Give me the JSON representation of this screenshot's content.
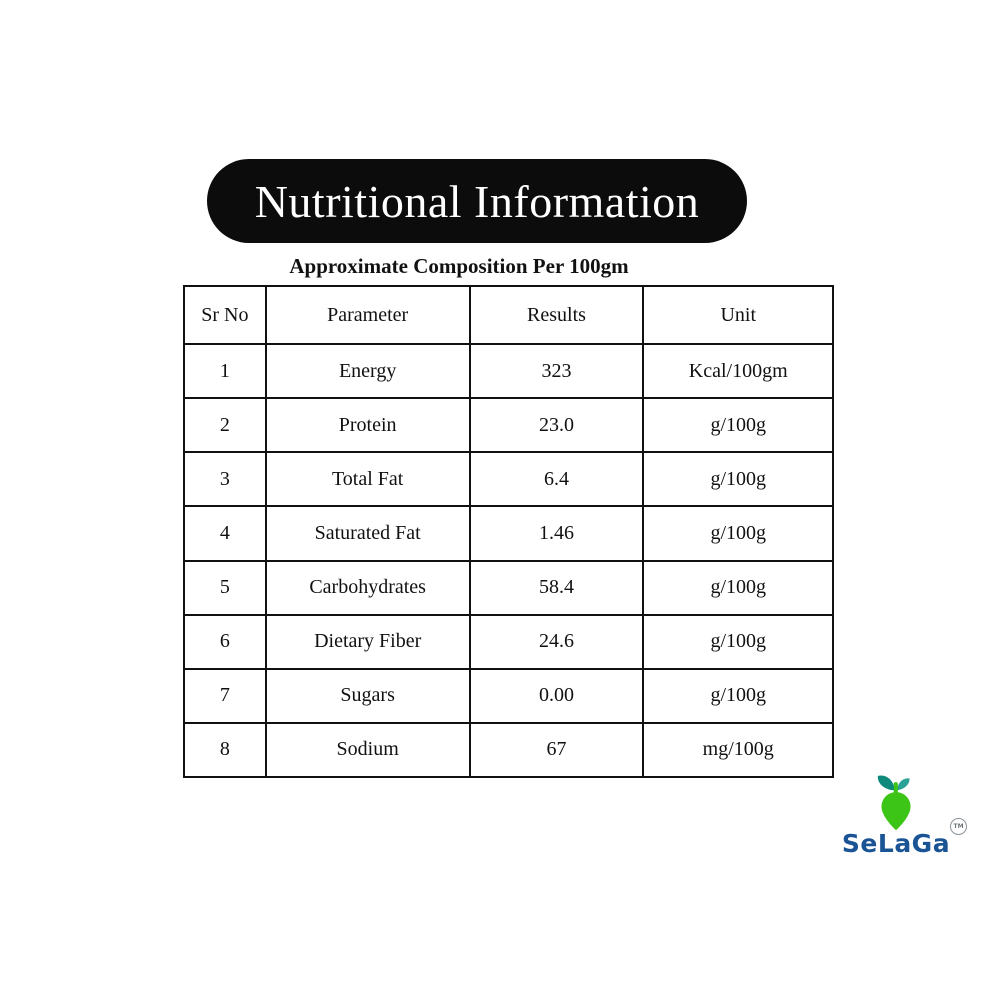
{
  "title": "Nutritional Information",
  "subtitle": "Approximate Composition Per 100gm",
  "table": {
    "headers": [
      "Sr No",
      "Parameter",
      "Results",
      "Unit"
    ],
    "rows": [
      [
        "1",
        "Energy",
        "323",
        "Kcal/100gm"
      ],
      [
        "2",
        "Protein",
        "23.0",
        "g/100g"
      ],
      [
        "3",
        "Total Fat",
        "6.4",
        "g/100g"
      ],
      [
        "4",
        "Saturated Fat",
        "1.46",
        "g/100g"
      ],
      [
        "5",
        "Carbohydrates",
        "58.4",
        "g/100g"
      ],
      [
        "6",
        "Dietary Fiber",
        "24.6",
        "g/100g"
      ],
      [
        "7",
        "Sugars",
        "0.00",
        "g/100g"
      ],
      [
        "8",
        "Sodium",
        "67",
        "mg/100g"
      ]
    ]
  },
  "logo": {
    "brand": "SeLaGa",
    "trademark": "TM",
    "icon": "seed-sprout-icon",
    "colors": {
      "seed_green": "#3cc417",
      "leaf_teal": "#0e8a7c",
      "leaf_teal_light": "#2aa396",
      "brand_text": "#1a5494"
    }
  },
  "colors": {
    "pill_background": "#0c0c0c",
    "pill_text": "#ffffff",
    "table_border": "#111111",
    "page_background": "#ffffff"
  }
}
